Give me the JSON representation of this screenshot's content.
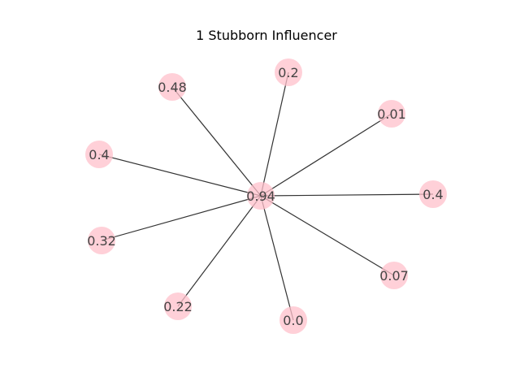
{
  "title": "1 Stubborn Influencer",
  "colors": {
    "node_fill": "#ffc0cb",
    "edge": "#333333",
    "label": "#444444"
  },
  "graph": {
    "center": {
      "id": "center",
      "label": "0.94"
    },
    "leaves": [
      {
        "id": "n1",
        "label": "0.48"
      },
      {
        "id": "n2",
        "label": "0.2"
      },
      {
        "id": "n3",
        "label": "0.01"
      },
      {
        "id": "n4",
        "label": "0.4"
      },
      {
        "id": "n5",
        "label": "0.4"
      },
      {
        "id": "n6",
        "label": "0.32"
      },
      {
        "id": "n7",
        "label": "0.07"
      },
      {
        "id": "n8",
        "label": "0.22"
      },
      {
        "id": "n9",
        "label": "0.0"
      }
    ],
    "edges": [
      [
        "center",
        "n1"
      ],
      [
        "center",
        "n2"
      ],
      [
        "center",
        "n3"
      ],
      [
        "center",
        "n4"
      ],
      [
        "center",
        "n5"
      ],
      [
        "center",
        "n6"
      ],
      [
        "center",
        "n7"
      ],
      [
        "center",
        "n8"
      ],
      [
        "center",
        "n9"
      ]
    ]
  }
}
